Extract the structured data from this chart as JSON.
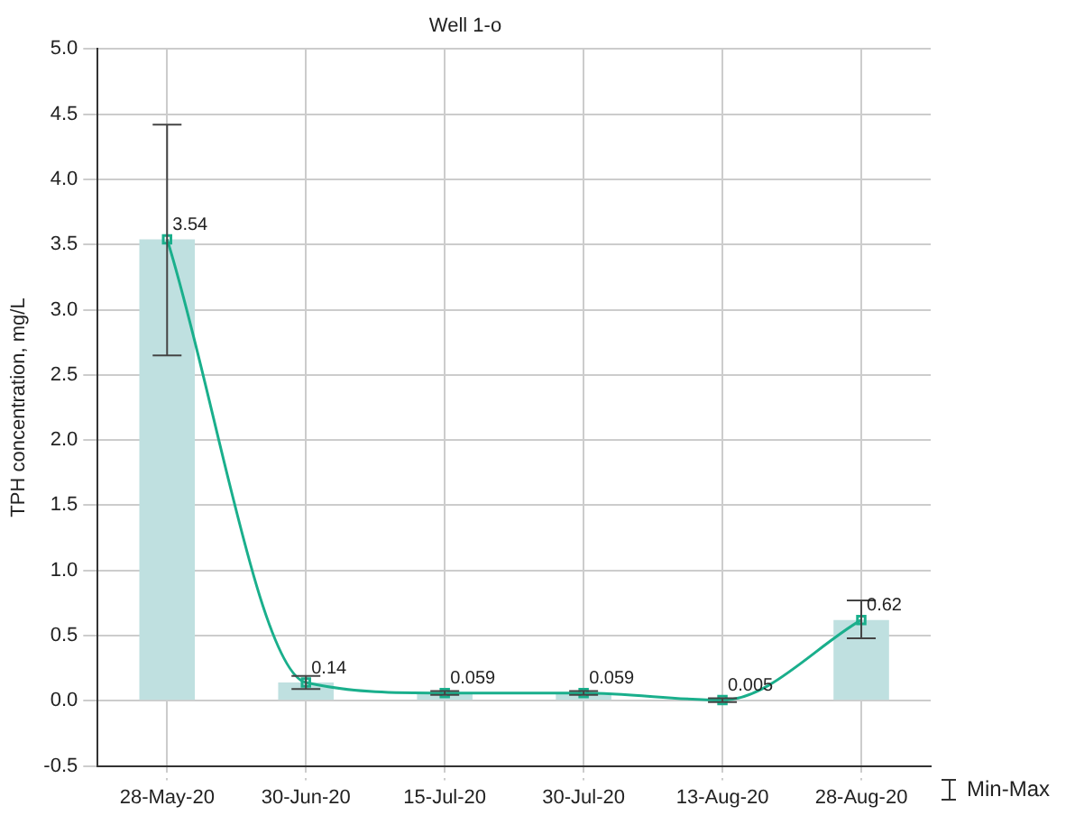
{
  "chart_data": {
    "type": "bar",
    "title": "Well 1-o",
    "ylabel": "TPH concentration, mg/L",
    "categories": [
      "28-May-20",
      "30-Jun-20",
      "15-Jul-20",
      "30-Jul-20",
      "13-Aug-20",
      "28-Aug-20"
    ],
    "series": [
      {
        "color": "#bfe0e0",
        "values": [
          3.54,
          0.14,
          0.059,
          0.059,
          0.005,
          0.62
        ]
      },
      {
        "type": "line",
        "color": "#1aaf8c",
        "values": [
          3.54,
          0.14,
          0.059,
          0.059,
          0.005,
          0.62
        ],
        "errors": [
          [
            2.65,
            4.42
          ],
          [
            0.09,
            0.19
          ],
          [
            0.045,
            0.075
          ],
          [
            0.045,
            0.075
          ],
          [
            -0.01,
            0.02
          ],
          [
            0.48,
            0.77
          ]
        ],
        "value_labels": [
          "3.54",
          "0.14",
          "0.059",
          "0.059",
          "0.005",
          "0.62"
        ]
      }
    ],
    "ylim": [
      -0.5,
      5.0
    ],
    "yticks": [
      -0.5,
      {
        "value": 0,
        "label": "0.0"
      },
      0.5,
      {
        "value": 1,
        "label": "1.0"
      },
      1.5,
      {
        "value": 2,
        "label": "2.0"
      },
      2.5,
      {
        "value": 3,
        "label": "3.0"
      },
      3.5,
      {
        "value": 4,
        "label": "4.0"
      },
      4.5,
      {
        "value": 5,
        "label": "5.0"
      }
    ],
    "grid": true,
    "legend": false,
    "marker": "square",
    "annotations": [
      "Min-Max"
    ]
  }
}
